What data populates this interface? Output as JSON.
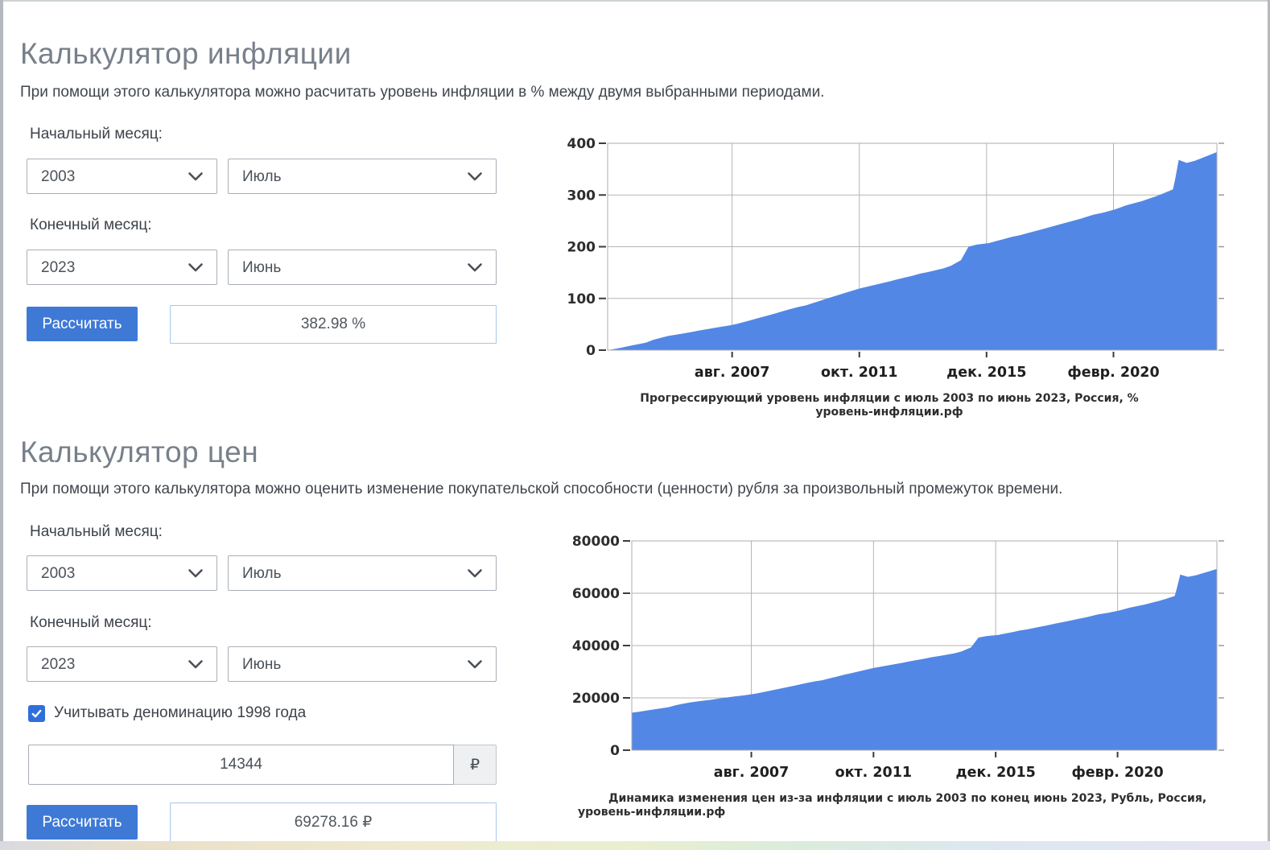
{
  "sections": {
    "inflation": {
      "title": "Калькулятор инфляции",
      "description": "При помощи этого калькулятора можно расчитать уровень инфляции в % между двумя выбранными периодами.",
      "start_label": "Начальный месяц:",
      "end_label": "Конечный месяц:",
      "start_year": "2003",
      "start_month": "Июль",
      "end_year": "2023",
      "end_month": "Июнь",
      "calculate_label": "Рассчитать",
      "result": "382.98 %"
    },
    "price": {
      "title": "Калькулятор цен",
      "description": "При помощи этого калькулятора можно оценить изменение покупательской способности (ценности) рубля за произвольный промежуток времени.",
      "start_label": "Начальный месяц:",
      "end_label": "Конечный месяц:",
      "start_year": "2003",
      "start_month": "Июль",
      "end_year": "2023",
      "end_month": "Июнь",
      "denomination_label": "Учитывать деноминацию 1998 года",
      "denomination_checked": true,
      "amount_value": "14344",
      "currency_symbol": "₽",
      "calculate_label": "Рассчитать",
      "result": "69278.16 ₽"
    }
  },
  "chart_data": [
    {
      "type": "area",
      "title": "Прогрессирующий уровень инфляции с июль 2003 по июнь 2023, Россия, %",
      "source": "уровень-инфляции.рф",
      "color": "#5287e5",
      "grid": true,
      "legend": "none",
      "x_range": [
        2003.5,
        2023.47
      ],
      "ylim": [
        0,
        400
      ],
      "y_ticks": [
        0,
        100,
        200,
        300,
        400
      ],
      "x_ticks": [
        [
          2007.58,
          "авг. 2007"
        ],
        [
          2011.75,
          "окт. 2011"
        ],
        [
          2015.92,
          "дек. 2015"
        ],
        [
          2020.08,
          "февр. 2020"
        ]
      ],
      "points": [
        [
          2003.5,
          0
        ],
        [
          2003.75,
          2.5
        ],
        [
          2004.0,
          5.5
        ],
        [
          2004.25,
          8.5
        ],
        [
          2004.5,
          11.5
        ],
        [
          2004.75,
          14.5
        ],
        [
          2005.0,
          20
        ],
        [
          2005.25,
          24
        ],
        [
          2005.5,
          27.5
        ],
        [
          2005.75,
          30
        ],
        [
          2006.0,
          32.5
        ],
        [
          2006.25,
          35
        ],
        [
          2006.5,
          38
        ],
        [
          2006.75,
          40.5
        ],
        [
          2007.0,
          43
        ],
        [
          2007.25,
          45.5
        ],
        [
          2007.5,
          48
        ],
        [
          2007.75,
          51
        ],
        [
          2008.0,
          55
        ],
        [
          2008.25,
          59
        ],
        [
          2008.5,
          63
        ],
        [
          2008.75,
          67
        ],
        [
          2009.0,
          71
        ],
        [
          2009.25,
          75.5
        ],
        [
          2009.5,
          79.5
        ],
        [
          2009.75,
          83.5
        ],
        [
          2010.0,
          86.5
        ],
        [
          2010.25,
          91.5
        ],
        [
          2010.5,
          96
        ],
        [
          2010.75,
          101
        ],
        [
          2011.0,
          105.5
        ],
        [
          2011.25,
          110
        ],
        [
          2011.5,
          114.5
        ],
        [
          2011.75,
          119
        ],
        [
          2012.0,
          122.5
        ],
        [
          2012.25,
          126
        ],
        [
          2012.5,
          129.5
        ],
        [
          2012.75,
          133
        ],
        [
          2013.0,
          137
        ],
        [
          2013.25,
          140.5
        ],
        [
          2013.5,
          144
        ],
        [
          2013.75,
          148
        ],
        [
          2014.0,
          151
        ],
        [
          2014.25,
          154.5
        ],
        [
          2014.5,
          158
        ],
        [
          2014.75,
          163
        ],
        [
          2015.08,
          174
        ],
        [
          2015.33,
          200
        ],
        [
          2015.6,
          204
        ],
        [
          2016.0,
          207
        ],
        [
          2016.25,
          211
        ],
        [
          2016.5,
          215
        ],
        [
          2016.75,
          219
        ],
        [
          2017.0,
          222
        ],
        [
          2017.25,
          226
        ],
        [
          2017.7,
          233
        ],
        [
          2018.0,
          238
        ],
        [
          2018.25,
          242
        ],
        [
          2018.5,
          246
        ],
        [
          2018.75,
          250
        ],
        [
          2019.0,
          254
        ],
        [
          2019.42,
          262
        ],
        [
          2019.75,
          266
        ],
        [
          2020.12,
          272
        ],
        [
          2020.5,
          280
        ],
        [
          2020.75,
          284
        ],
        [
          2021.0,
          288
        ],
        [
          2021.25,
          293
        ],
        [
          2021.5,
          298
        ],
        [
          2021.75,
          304
        ],
        [
          2022.03,
          311
        ],
        [
          2022.1,
          330
        ],
        [
          2022.22,
          368
        ],
        [
          2022.35,
          365
        ],
        [
          2022.48,
          362
        ],
        [
          2022.75,
          366
        ],
        [
          2023.0,
          372
        ],
        [
          2023.26,
          378
        ],
        [
          2023.47,
          382.98
        ]
      ]
    },
    {
      "type": "area",
      "title": "Динамика изменения цен из-за инфляции с июль 2003 по конец июнь 2023, Рубль, Россия,",
      "source": "уровень-инфляции.рф",
      "color": "#5287e5",
      "grid": true,
      "legend": "none",
      "x_range": [
        2003.5,
        2023.47
      ],
      "ylim": [
        0,
        80000
      ],
      "y_ticks": [
        0,
        20000,
        40000,
        60000,
        80000
      ],
      "x_ticks": [
        [
          2007.58,
          "авг. 2007"
        ],
        [
          2011.75,
          "окт. 2011"
        ],
        [
          2015.92,
          "дек. 2015"
        ],
        [
          2020.08,
          "февр. 2020"
        ]
      ],
      "points": [
        [
          2003.5,
          14344
        ],
        [
          2003.75,
          14703
        ],
        [
          2004.0,
          15133
        ],
        [
          2004.25,
          15563
        ],
        [
          2004.5,
          15994
        ],
        [
          2004.75,
          16424
        ],
        [
          2005.0,
          17213
        ],
        [
          2005.25,
          17787
        ],
        [
          2005.5,
          18289
        ],
        [
          2005.75,
          18647
        ],
        [
          2006.0,
          19006
        ],
        [
          2006.25,
          19364
        ],
        [
          2006.5,
          19795
        ],
        [
          2006.75,
          20153
        ],
        [
          2007.0,
          20512
        ],
        [
          2007.25,
          20871
        ],
        [
          2007.5,
          21229
        ],
        [
          2007.75,
          21659
        ],
        [
          2008.0,
          22233
        ],
        [
          2008.25,
          22807
        ],
        [
          2008.5,
          23381
        ],
        [
          2008.75,
          23954
        ],
        [
          2009.0,
          24528
        ],
        [
          2009.25,
          25173
        ],
        [
          2009.5,
          25747
        ],
        [
          2009.75,
          26321
        ],
        [
          2010.0,
          26751
        ],
        [
          2010.25,
          27468
        ],
        [
          2010.5,
          28114
        ],
        [
          2010.75,
          28831
        ],
        [
          2011.0,
          29476
        ],
        [
          2011.25,
          30122
        ],
        [
          2011.5,
          30767
        ],
        [
          2011.75,
          31413
        ],
        [
          2012.0,
          31915
        ],
        [
          2012.25,
          32417
        ],
        [
          2012.5,
          32919
        ],
        [
          2012.75,
          33421
        ],
        [
          2013.0,
          33995
        ],
        [
          2013.25,
          34497
        ],
        [
          2013.5,
          34999
        ],
        [
          2013.75,
          35573
        ],
        [
          2014.0,
          36003
        ],
        [
          2014.25,
          36505
        ],
        [
          2014.5,
          37007
        ],
        [
          2014.75,
          37724
        ],
        [
          2015.08,
          39302
        ],
        [
          2015.33,
          43032
        ],
        [
          2015.6,
          43606
        ],
        [
          2016.0,
          44036
        ],
        [
          2016.25,
          44610
        ],
        [
          2016.5,
          45184
        ],
        [
          2016.75,
          45758
        ],
        [
          2017.0,
          46188
        ],
        [
          2017.25,
          46762
        ],
        [
          2017.7,
          47766
        ],
        [
          2018.0,
          48483
        ],
        [
          2018.25,
          49057
        ],
        [
          2018.5,
          49630
        ],
        [
          2018.75,
          50204
        ],
        [
          2019.0,
          50778
        ],
        [
          2019.42,
          51925
        ],
        [
          2019.75,
          52499
        ],
        [
          2020.12,
          53360
        ],
        [
          2020.5,
          54507
        ],
        [
          2020.75,
          55081
        ],
        [
          2021.0,
          55655
        ],
        [
          2021.25,
          56372
        ],
        [
          2021.5,
          57089
        ],
        [
          2021.75,
          57950
        ],
        [
          2022.03,
          58954
        ],
        [
          2022.1,
          61679
        ],
        [
          2022.22,
          67130
        ],
        [
          2022.35,
          66700
        ],
        [
          2022.48,
          66269
        ],
        [
          2022.75,
          66843
        ],
        [
          2023.0,
          67704
        ],
        [
          2023.26,
          68564
        ],
        [
          2023.47,
          69278.16
        ]
      ]
    }
  ]
}
